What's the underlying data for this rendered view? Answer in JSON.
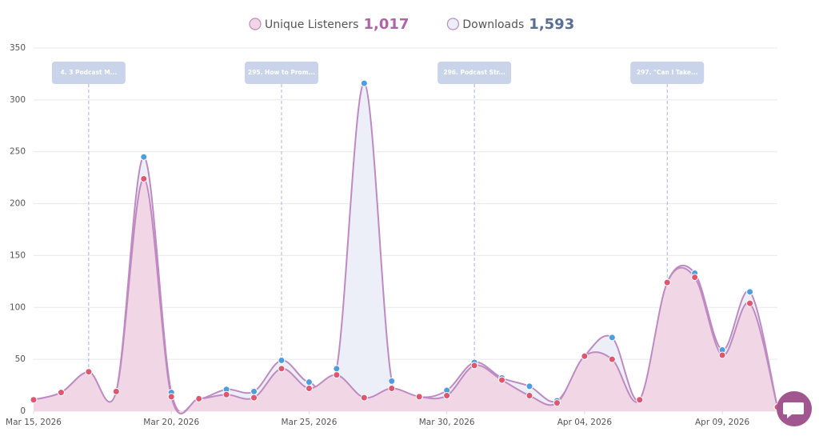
{
  "chart_data": {
    "type": "area",
    "x": [
      "2026-03-15",
      "2026-03-16",
      "2026-03-17",
      "2026-03-18",
      "2026-03-19",
      "2026-03-20",
      "2026-03-21",
      "2026-03-22",
      "2026-03-23",
      "2026-03-24",
      "2026-03-25",
      "2026-03-26",
      "2026-03-27",
      "2026-03-28",
      "2026-03-29",
      "2026-03-30",
      "2026-03-31",
      "2026-04-01",
      "2026-04-02",
      "2026-04-03",
      "2026-04-04",
      "2026-04-05",
      "2026-04-06",
      "2026-04-07",
      "2026-04-08",
      "2026-04-09",
      "2026-04-10",
      "2026-04-11"
    ],
    "series": [
      {
        "name": "Downloads",
        "color": "#4d9de0",
        "fill": "#eceef8",
        "total": {
          "value": 1593,
          "label": "1,593"
        },
        "total_color": "#5a6f96",
        "values": [
          11,
          18,
          38,
          19,
          245,
          18,
          12,
          21,
          19,
          49,
          28,
          41,
          316,
          29,
          14,
          20,
          47,
          32,
          24,
          10,
          53,
          71,
          11,
          124,
          133,
          59,
          115,
          4
        ]
      },
      {
        "name": "Unique Listeners",
        "color": "#e0566e",
        "fill": "#f1d6e6",
        "total": {
          "value": 1017,
          "label": "1,017"
        },
        "total_color": "#b064a8",
        "values": [
          11,
          18,
          38,
          19,
          224,
          14,
          12,
          16,
          13,
          41,
          22,
          35,
          13,
          22,
          14,
          15,
          44,
          30,
          15,
          8,
          53,
          50,
          11,
          124,
          129,
          54,
          104,
          4
        ]
      }
    ],
    "line_color": "#bf8ac2",
    "xlim": [
      "2026-03-15",
      "2026-04-11"
    ],
    "xticks": [
      {
        "value": "2026-03-15",
        "label": "Mar 15, 2026"
      },
      {
        "value": "2026-03-20",
        "label": "Mar 20, 2026"
      },
      {
        "value": "2026-03-25",
        "label": "Mar 25, 2026"
      },
      {
        "value": "2026-03-30",
        "label": "Mar 30, 2026"
      },
      {
        "value": "2026-04-04",
        "label": "Apr 04, 2026"
      },
      {
        "value": "2026-04-09",
        "label": "Apr 09, 2026"
      }
    ],
    "ylim": [
      0,
      350
    ],
    "yticks": [
      0,
      50,
      100,
      150,
      200,
      250,
      300,
      350
    ],
    "grid": true,
    "annotations": [
      {
        "x": "2026-03-17",
        "text": "4. 3 Podcast M..."
      },
      {
        "x": "2026-03-24",
        "text": "295. How to Prom..."
      },
      {
        "x": "2026-03-31",
        "text": "296. Podcast Str..."
      },
      {
        "x": "2026-04-07",
        "text": "297. \"Can I Take..."
      }
    ]
  }
}
